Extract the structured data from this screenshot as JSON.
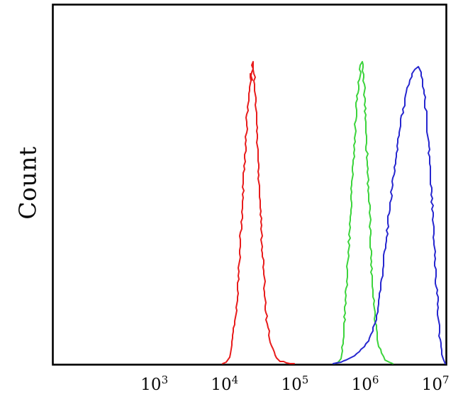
{
  "chart_data": {
    "type": "line",
    "subtype": "flow-cytometry-histogram-overlay",
    "title": "",
    "xlabel": "",
    "ylabel": "Count",
    "x_scale": "log10",
    "x_range_log": [
      1.55,
      7.16
    ],
    "y_range_rel": [
      0,
      1.19
    ],
    "grid": false,
    "legend": "none",
    "frame_color": "#000000",
    "background_color": "#ffffff",
    "tick_label_color": "#0a0a0a",
    "x_ticks": [
      {
        "base": "10",
        "exp": "3",
        "log": 3
      },
      {
        "base": "10",
        "exp": "4",
        "log": 4
      },
      {
        "base": "10",
        "exp": "5",
        "log": 5
      },
      {
        "base": "10",
        "exp": "6",
        "log": 6
      },
      {
        "base": "10",
        "exp": "7",
        "log": 7
      }
    ],
    "series": [
      {
        "name": "red",
        "color": "#e81c1c",
        "peak_log": 4.4,
        "peak_value_approx": 25000,
        "peak_height_rel": 1.0,
        "points": [
          [
            3.97,
            0
          ],
          [
            4.03,
            0.004
          ],
          [
            4.06,
            0.02
          ],
          [
            4.1,
            0.06
          ],
          [
            4.14,
            0.13
          ],
          [
            4.18,
            0.22
          ],
          [
            4.21,
            0.34
          ],
          [
            4.245,
            0.48
          ],
          [
            4.27,
            0.62
          ],
          [
            4.3,
            0.74
          ],
          [
            4.33,
            0.85
          ],
          [
            4.355,
            0.915
          ],
          [
            4.37,
            0.96
          ],
          [
            4.38,
            0.94
          ],
          [
            4.4,
            1.0
          ],
          [
            4.42,
            0.96
          ],
          [
            4.44,
            0.88
          ],
          [
            4.46,
            0.77
          ],
          [
            4.48,
            0.66
          ],
          [
            4.505,
            0.54
          ],
          [
            4.53,
            0.4
          ],
          [
            4.565,
            0.26
          ],
          [
            4.6,
            0.145
          ],
          [
            4.65,
            0.07
          ],
          [
            4.71,
            0.028
          ],
          [
            4.79,
            0.009
          ],
          [
            4.88,
            0.003
          ],
          [
            4.99,
            0
          ]
        ]
      },
      {
        "name": "green",
        "color": "#3cd43c",
        "peak_log": 5.95,
        "peak_value_approx": 890000,
        "peak_height_rel": 1.0,
        "points": [
          [
            5.57,
            0
          ],
          [
            5.63,
            0.004
          ],
          [
            5.66,
            0.03
          ],
          [
            5.69,
            0.1
          ],
          [
            5.72,
            0.2
          ],
          [
            5.75,
            0.31
          ],
          [
            5.78,
            0.44
          ],
          [
            5.81,
            0.58
          ],
          [
            5.84,
            0.71
          ],
          [
            5.87,
            0.83
          ],
          [
            5.9,
            0.92
          ],
          [
            5.93,
            0.975
          ],
          [
            5.95,
            1.0
          ],
          [
            5.97,
            0.97
          ],
          [
            5.99,
            0.89
          ],
          [
            6.01,
            0.79
          ],
          [
            6.03,
            0.67
          ],
          [
            6.05,
            0.56
          ],
          [
            6.075,
            0.43
          ],
          [
            6.1,
            0.28
          ],
          [
            6.14,
            0.16
          ],
          [
            6.18,
            0.08
          ],
          [
            6.23,
            0.035
          ],
          [
            6.28,
            0.012
          ],
          [
            6.34,
            0.004
          ],
          [
            6.39,
            0
          ]
        ]
      },
      {
        "name": "blue",
        "color": "#2727cf",
        "peak_log": 6.76,
        "peak_value_approx": 5800000,
        "peak_height_rel": 0.984,
        "points": [
          [
            5.55,
            0
          ],
          [
            5.6,
            0.002
          ],
          [
            5.66,
            0.006
          ],
          [
            5.73,
            0.013
          ],
          [
            5.81,
            0.021
          ],
          [
            5.88,
            0.033
          ],
          [
            5.95,
            0.048
          ],
          [
            6.01,
            0.065
          ],
          [
            6.07,
            0.085
          ],
          [
            6.11,
            0.108
          ],
          [
            6.15,
            0.146
          ],
          [
            6.19,
            0.197
          ],
          [
            6.23,
            0.267
          ],
          [
            6.27,
            0.348
          ],
          [
            6.31,
            0.43
          ],
          [
            6.35,
            0.51
          ],
          [
            6.39,
            0.592
          ],
          [
            6.43,
            0.663
          ],
          [
            6.47,
            0.733
          ],
          [
            6.51,
            0.798
          ],
          [
            6.55,
            0.854
          ],
          [
            6.59,
            0.9
          ],
          [
            6.63,
            0.938
          ],
          [
            6.67,
            0.961
          ],
          [
            6.71,
            0.975
          ],
          [
            6.76,
            0.984
          ],
          [
            6.8,
            0.965
          ],
          [
            6.83,
            0.918
          ],
          [
            6.86,
            0.848
          ],
          [
            6.89,
            0.767
          ],
          [
            6.92,
            0.663
          ],
          [
            6.95,
            0.535
          ],
          [
            6.98,
            0.406
          ],
          [
            7.01,
            0.278
          ],
          [
            7.04,
            0.162
          ],
          [
            7.06,
            0.092
          ],
          [
            7.08,
            0.044
          ],
          [
            7.1,
            0.016
          ],
          [
            7.12,
            0.005
          ],
          [
            7.135,
            0
          ]
        ]
      }
    ]
  }
}
